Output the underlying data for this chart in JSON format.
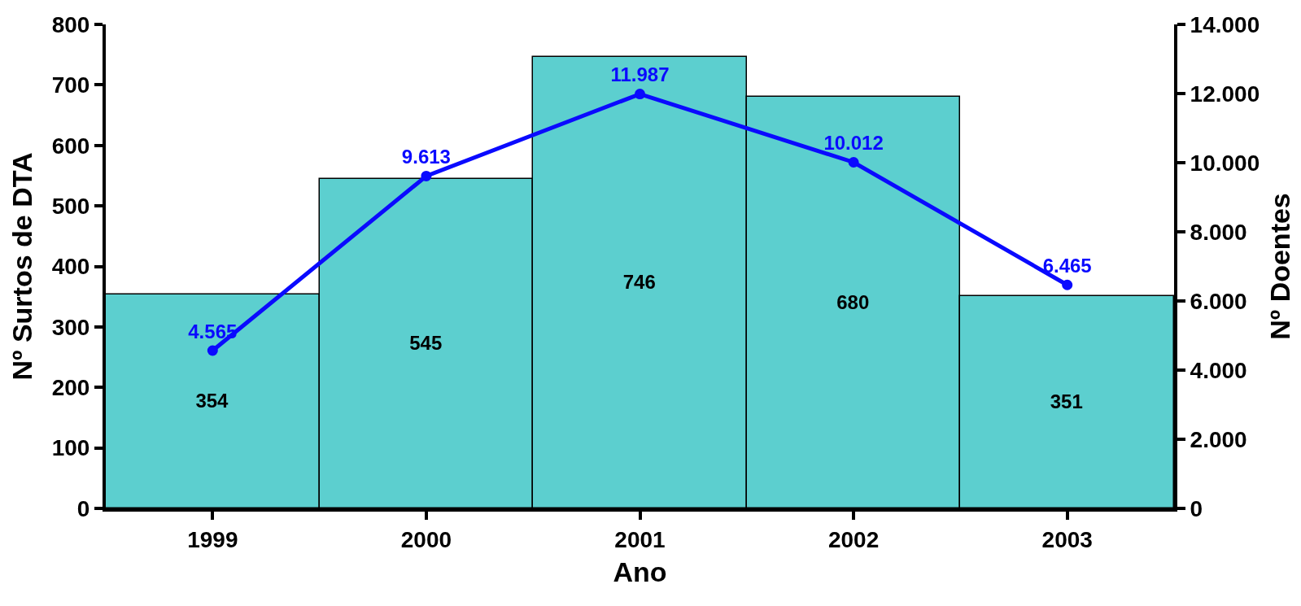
{
  "chart_data": {
    "type": "bar",
    "xlabel": "Ano",
    "ylabel": "Nº Surtos de DTA",
    "y2label": "Nº Doentes",
    "categories": [
      "1999",
      "2000",
      "2001",
      "2002",
      "2003"
    ],
    "series": [
      {
        "color": "#5ccfcf",
        "values": [
          354,
          545,
          746,
          680,
          351
        ],
        "value_labels": [
          "354",
          "545",
          "746",
          "680",
          "351"
        ]
      },
      {
        "type": "line",
        "axis": "y2",
        "color": "#0a0aff",
        "values": [
          4565,
          9613,
          11987,
          10012,
          6465
        ],
        "value_labels": [
          "4.565",
          "9.613",
          "11.987",
          "10.012",
          "6.465"
        ]
      }
    ],
    "ylim": [
      0,
      800
    ],
    "yticks": [
      0,
      100,
      200,
      300,
      400,
      500,
      600,
      700,
      800
    ],
    "y2lim": [
      0,
      14000
    ],
    "y2ticks": [
      0,
      {
        "value": 2000,
        "label": "2.000"
      },
      {
        "value": 4000,
        "label": "4.000"
      },
      {
        "value": 6000,
        "label": "6.000"
      },
      {
        "value": 8000,
        "label": "8.000"
      },
      {
        "value": 10000,
        "label": "10.000"
      },
      {
        "value": 12000,
        "label": "12.000"
      },
      {
        "value": 14000,
        "label": "14.000"
      }
    ],
    "marker": "circle",
    "line_style": "solid",
    "legend": false
  }
}
